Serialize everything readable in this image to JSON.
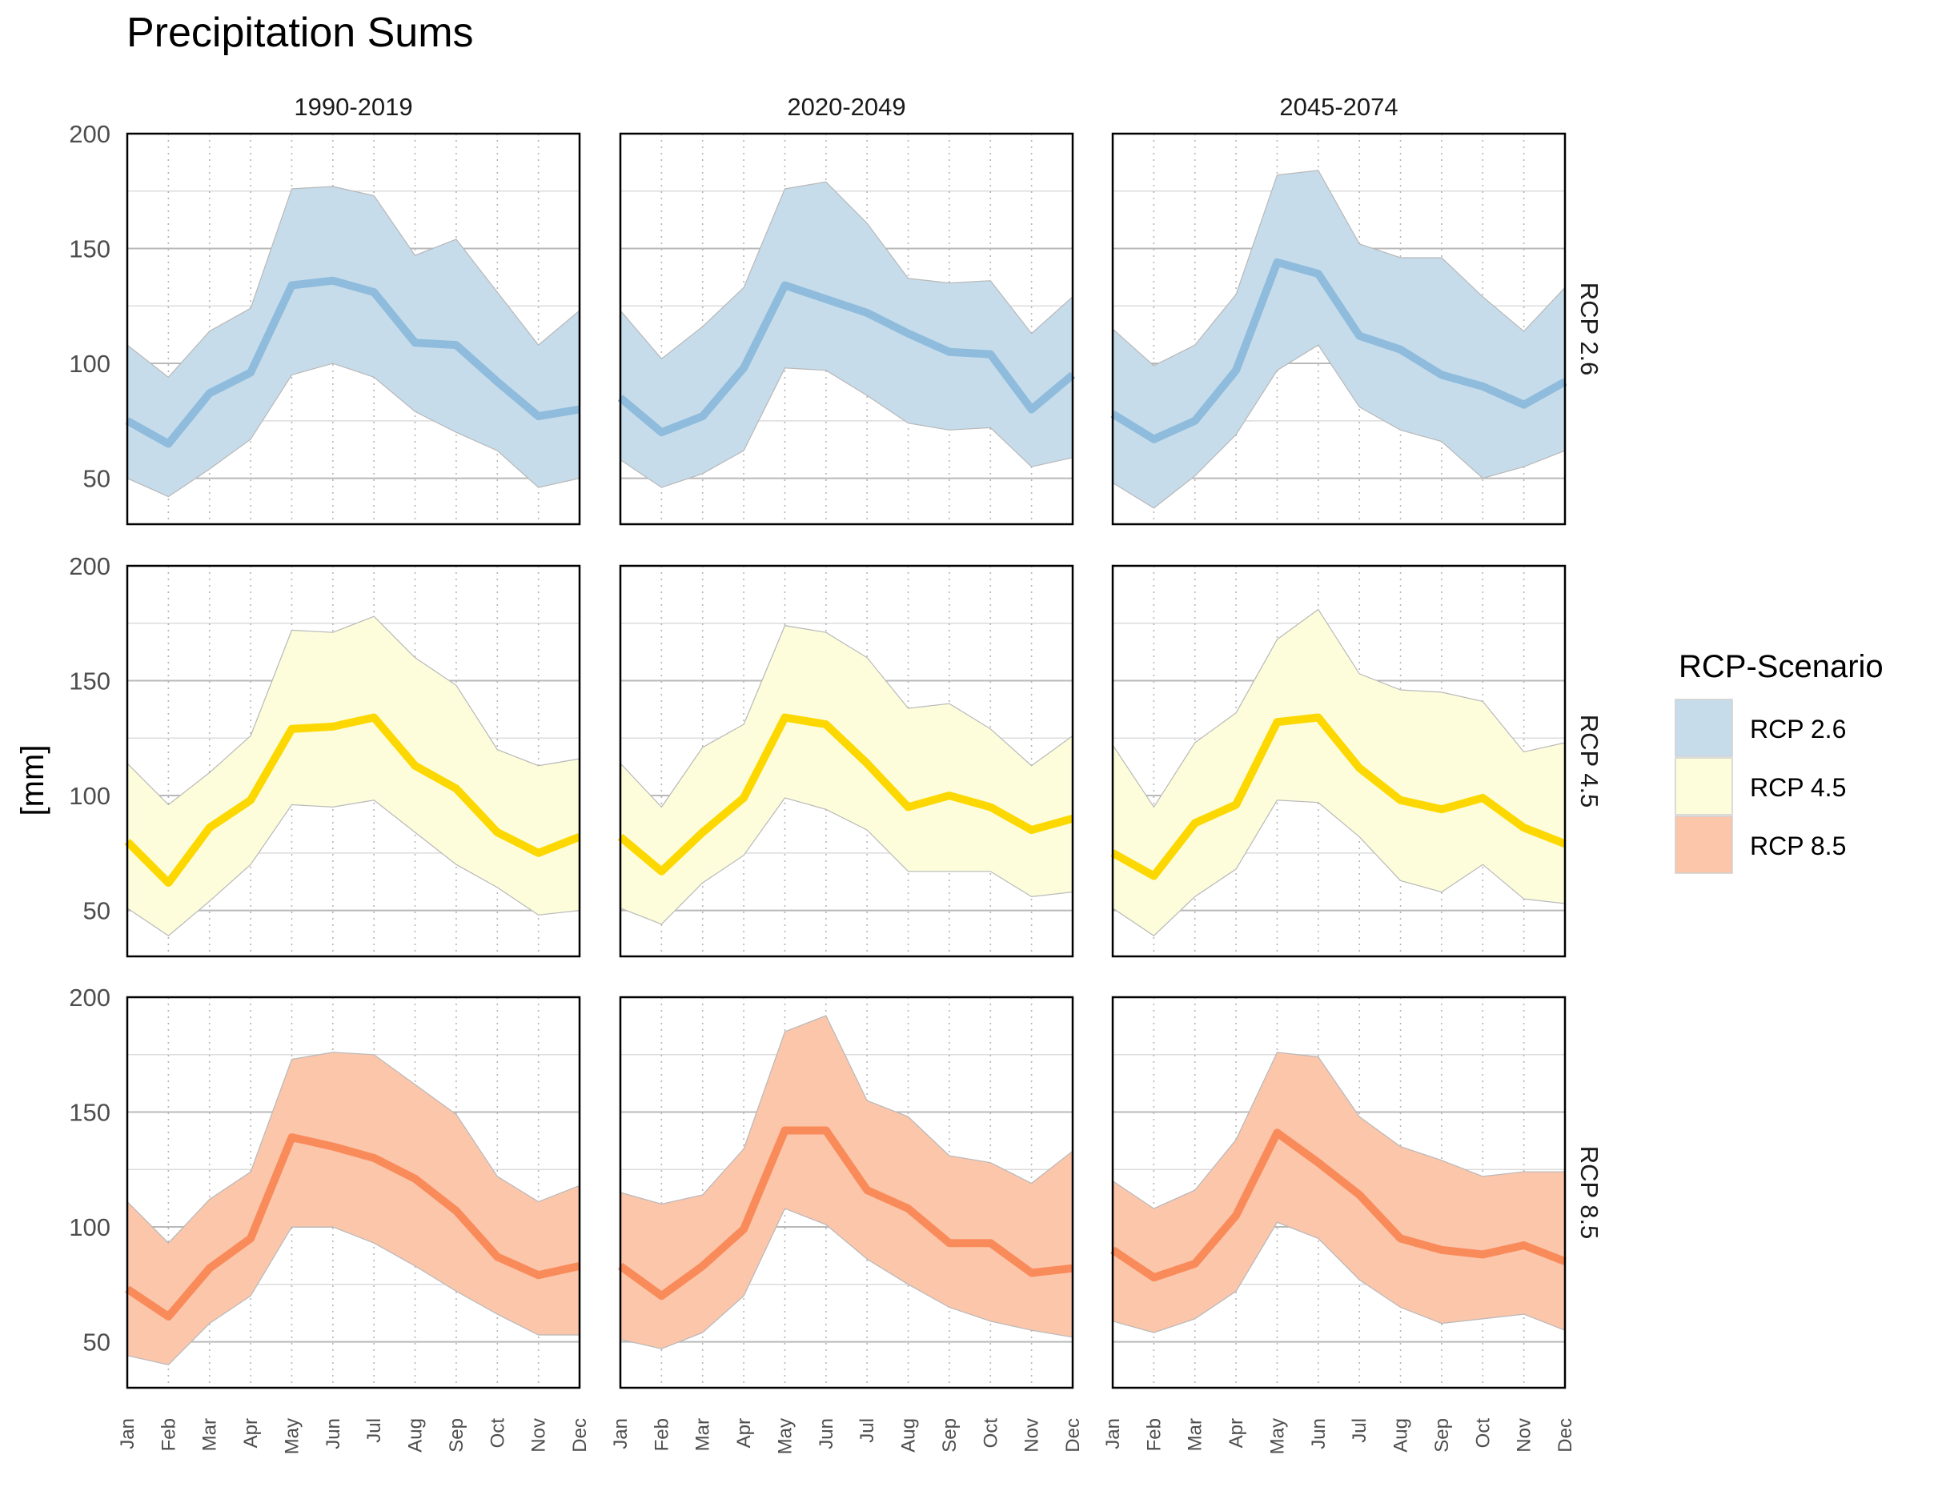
{
  "title": "Precipitation Sums",
  "ylabel": "[mm]",
  "legend": {
    "title": "RCP-Scenario",
    "position": "right",
    "items": [
      {
        "label": "RCP 2.6",
        "fill": "#c6dceb"
      },
      {
        "label": "RCP 4.5",
        "fill": "#fdfddc"
      },
      {
        "label": "RCP 8.5",
        "fill": "#fcc6ab"
      }
    ]
  },
  "chart_data": {
    "type": "line",
    "note_band": "shaded band = range (lower to upper), thick line = mean",
    "x": [
      "Jan",
      "Feb",
      "Mar",
      "Apr",
      "May",
      "Jun",
      "Jul",
      "Aug",
      "Sep",
      "Oct",
      "Nov",
      "Dec"
    ],
    "ylim": [
      30,
      200
    ],
    "yticks": [
      50,
      100,
      150,
      200
    ],
    "grid": true,
    "columns": [
      "1990-2019",
      "2020-2049",
      "2045-2074"
    ],
    "rows": [
      {
        "label": "RCP 2.6",
        "line_color": "#8fbcdc",
        "band_color": "#c6dceb"
      },
      {
        "label": "RCP 4.5",
        "line_color": "#fcd800",
        "band_color": "#fdfddc"
      },
      {
        "label": "RCP 8.5",
        "line_color": "#f98b5a",
        "band_color": "#fcc6ab"
      }
    ],
    "panels": [
      {
        "row": "RCP 2.6",
        "column": "1990-2019",
        "mean": [
          75,
          65,
          87,
          96,
          134,
          136,
          131,
          109,
          108,
          92,
          77,
          80
        ],
        "lower": [
          50,
          42,
          54,
          67,
          95,
          100,
          94,
          79,
          70,
          62,
          46,
          50
        ],
        "upper": [
          108,
          94,
          114,
          124,
          176,
          177,
          173,
          147,
          154,
          131,
          108,
          123
        ]
      },
      {
        "row": "RCP 2.6",
        "column": "2020-2049",
        "mean": [
          85,
          70,
          77,
          98,
          134,
          128,
          122,
          113,
          105,
          104,
          80,
          95
        ],
        "lower": [
          58,
          46,
          52,
          62,
          98,
          97,
          86,
          74,
          71,
          72,
          55,
          59
        ],
        "upper": [
          123,
          102,
          116,
          133,
          176,
          179,
          161,
          137,
          135,
          136,
          113,
          129
        ]
      },
      {
        "row": "RCP 2.6",
        "column": "2045-2074",
        "mean": [
          78,
          67,
          75,
          97,
          144,
          139,
          112,
          106,
          95,
          90,
          82,
          92
        ],
        "lower": [
          48,
          37,
          51,
          69,
          97,
          108,
          81,
          71,
          66,
          50,
          55,
          62
        ],
        "upper": [
          115,
          99,
          108,
          130,
          182,
          184,
          152,
          146,
          146,
          129,
          114,
          133
        ]
      },
      {
        "row": "RCP 4.5",
        "column": "1990-2019",
        "mean": [
          80,
          62,
          86,
          98,
          129,
          130,
          134,
          113,
          103,
          84,
          75,
          82
        ],
        "lower": [
          51,
          39,
          54,
          70,
          96,
          95,
          98,
          84,
          70,
          60,
          48,
          50
        ],
        "upper": [
          114,
          96,
          110,
          126,
          172,
          171,
          178,
          160,
          148,
          120,
          113,
          116
        ]
      },
      {
        "row": "RCP 4.5",
        "column": "2020-2049",
        "mean": [
          82,
          67,
          84,
          99,
          134,
          131,
          114,
          95,
          100,
          95,
          85,
          90
        ],
        "lower": [
          51,
          44,
          62,
          74,
          99,
          94,
          85,
          67,
          67,
          67,
          56,
          58
        ],
        "upper": [
          114,
          95,
          121,
          131,
          174,
          171,
          160,
          138,
          140,
          129,
          113,
          126
        ]
      },
      {
        "row": "RCP 4.5",
        "column": "2045-2074",
        "mean": [
          75,
          65,
          88,
          96,
          132,
          134,
          112,
          98,
          94,
          99,
          86,
          79
        ],
        "lower": [
          51,
          39,
          56,
          68,
          98,
          97,
          82,
          63,
          58,
          70,
          55,
          53
        ],
        "upper": [
          122,
          95,
          123,
          136,
          168,
          181,
          153,
          146,
          145,
          141,
          119,
          123
        ]
      },
      {
        "row": "RCP 8.5",
        "column": "1990-2019",
        "mean": [
          73,
          61,
          82,
          95,
          139,
          135,
          130,
          121,
          107,
          87,
          79,
          83
        ],
        "lower": [
          44,
          40,
          58,
          70,
          100,
          100,
          93,
          83,
          72,
          62,
          53,
          53
        ],
        "upper": [
          111,
          93,
          112,
          124,
          173,
          176,
          175,
          162,
          149,
          122,
          111,
          118
        ]
      },
      {
        "row": "RCP 8.5",
        "column": "2020-2049",
        "mean": [
          83,
          70,
          83,
          99,
          142,
          142,
          116,
          108,
          93,
          93,
          80,
          82
        ],
        "lower": [
          51,
          47,
          54,
          70,
          108,
          101,
          86,
          75,
          65,
          59,
          55,
          52
        ],
        "upper": [
          115,
          110,
          114,
          134,
          185,
          192,
          155,
          148,
          131,
          128,
          119,
          133
        ]
      },
      {
        "row": "RCP 8.5",
        "column": "2045-2074",
        "mean": [
          90,
          78,
          84,
          105,
          141,
          128,
          114,
          95,
          90,
          88,
          92,
          85
        ],
        "lower": [
          59,
          54,
          60,
          72,
          102,
          95,
          77,
          65,
          58,
          60,
          62,
          55
        ],
        "upper": [
          120,
          108,
          116,
          138,
          176,
          174,
          148,
          135,
          129,
          122,
          124,
          124
        ]
      }
    ]
  }
}
